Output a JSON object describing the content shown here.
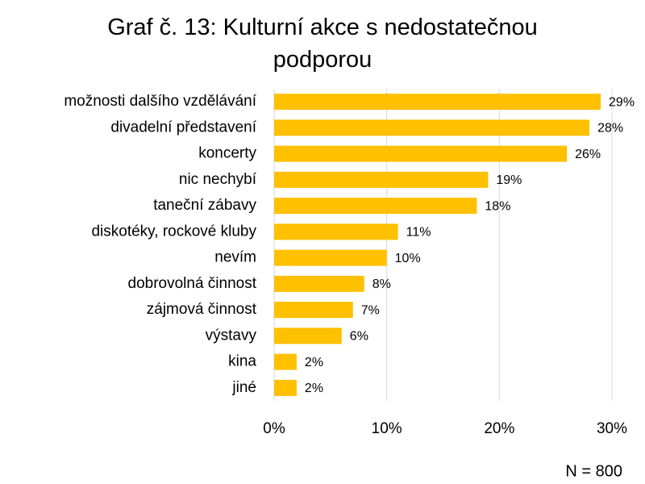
{
  "chart_data": {
    "type": "bar",
    "orientation": "horizontal",
    "title": "Graf č. 13: Kulturní akce s nedostatečnou podporou",
    "categories": [
      "možnosti dalšího vzdělávání",
      "divadelní představení",
      "koncerty",
      "nic nechybí",
      "taneční zábavy",
      "diskotéky, rockové kluby",
      "nevím",
      "dobrovolná činnost",
      "zájmová činnost",
      "výstavy",
      "kina",
      "jiné"
    ],
    "values": [
      29,
      28,
      26,
      19,
      18,
      11,
      10,
      8,
      7,
      6,
      2,
      2
    ],
    "value_labels": [
      "29%",
      "28%",
      "26%",
      "19%",
      "18%",
      "11%",
      "10%",
      "8%",
      "7%",
      "6%",
      "2%",
      "2%"
    ],
    "color": "#ffc000",
    "xlim": [
      0,
      30
    ],
    "xticks": [
      {
        "value": 0,
        "label": "0%"
      },
      {
        "value": 10,
        "label": "10%"
      },
      {
        "value": 20,
        "label": "20%"
      },
      {
        "value": 30,
        "label": "30%"
      }
    ],
    "grid": true,
    "annotation": "N = 800"
  }
}
